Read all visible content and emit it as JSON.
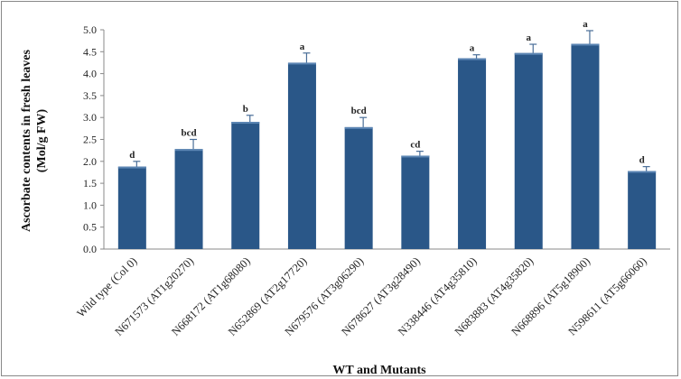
{
  "chart_data": {
    "type": "bar",
    "title": "",
    "ylabel_line1": "Ascorbate contents in fresh leaves",
    "ylabel_line2": "(Mol/g FW)",
    "xlabel": "WT and Mutants",
    "ylim": [
      0,
      5
    ],
    "ytick_step": 0.5,
    "yticks": [
      "0.0",
      "0.5",
      "1.0",
      "1.5",
      "2.0",
      "2.5",
      "3.0",
      "3.5",
      "4.0",
      "4.5",
      "5.0"
    ],
    "grid": false,
    "legend": "none",
    "bar_color": "#2A5788",
    "error_color": "#4A6E98",
    "categories": [
      "Wild type (Col 0)",
      "N671573 (AT1g20270)",
      "N668172 (AT1g68080)",
      "N652869 (AT2g17720)",
      "N679576 (AT3g06290)",
      "N678627 (AT3g28490)",
      "N338446 (AT4g35810)",
      "N683883 (AT4g35820)",
      "N668896 (AT5g18900)",
      "N598611 (AT5g66060)"
    ],
    "values": [
      1.88,
      2.28,
      2.9,
      4.25,
      2.78,
      2.13,
      4.35,
      4.47,
      4.68,
      1.78
    ],
    "errors": [
      0.12,
      0.22,
      0.15,
      0.22,
      0.22,
      0.1,
      0.08,
      0.2,
      0.3,
      0.1
    ],
    "significance_letters": [
      "d",
      "bcd",
      "b",
      "a",
      "bcd",
      "cd",
      "a",
      "a",
      "a",
      "d"
    ]
  }
}
